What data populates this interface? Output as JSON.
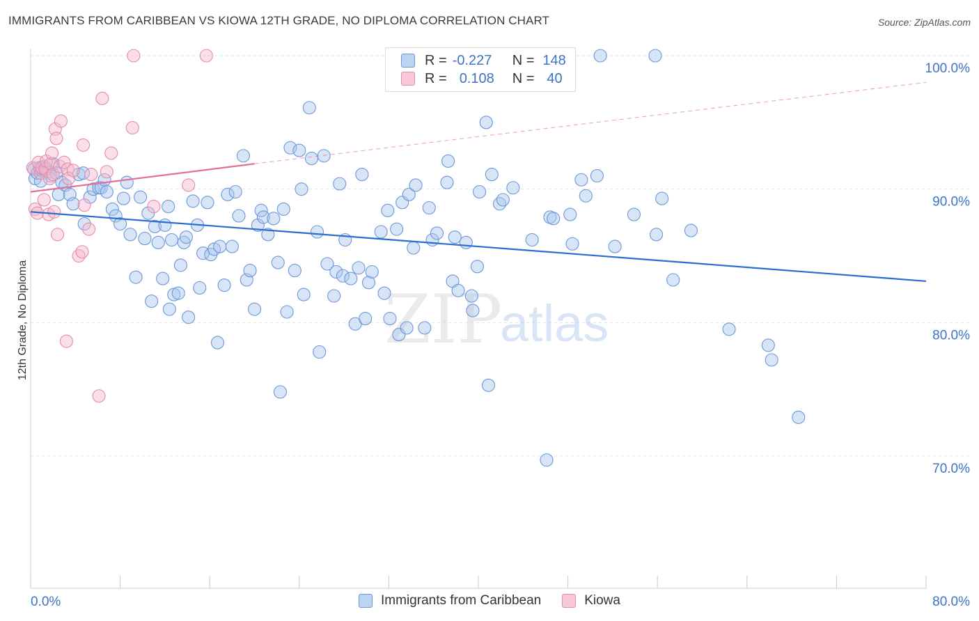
{
  "title": "IMMIGRANTS FROM CARIBBEAN VS KIOWA 12TH GRADE, NO DIPLOMA CORRELATION CHART",
  "source": "Source: ZipAtlas.com",
  "watermark": {
    "zip": "ZIP",
    "atlas": "atlas"
  },
  "colors": {
    "blue": "#3b73c8",
    "blue_fill": "#a9c6ee",
    "blue_line": "#2a6cd0",
    "pink": "#e06896",
    "pink_fill": "#f4b9cc",
    "pink_line": "#e27099",
    "grid": "#e3e3e3",
    "axis_text": "#3b73c8"
  },
  "legend": {
    "rows": [
      {
        "r_label": "R =",
        "r_value": "-0.227",
        "n_label": "N =",
        "n_value": "148",
        "color": "blue"
      },
      {
        "r_label": "R =",
        "r_value": "0.108",
        "n_label": "N =",
        "n_value": "40",
        "color": "pink"
      }
    ],
    "items": [
      {
        "label": "Immigrants from Caribbean",
        "color": "blue"
      },
      {
        "label": "Kiowa",
        "color": "pink"
      }
    ]
  },
  "chart_data": {
    "type": "scatter",
    "title": "IMMIGRANTS FROM CARIBBEAN VS KIOWA 12TH GRADE, NO DIPLOMA CORRELATION CHART",
    "xlabel": "",
    "ylabel": "12th Grade, No Diploma",
    "xlim": [
      0,
      80
    ],
    "ylim": [
      60,
      101
    ],
    "x_tick_labels": [
      "0.0%",
      "80.0%"
    ],
    "y_tick_values": [
      70,
      80,
      90,
      100
    ],
    "y_tick_labels": [
      "70.0%",
      "80.0%",
      "90.0%",
      "100.0%"
    ],
    "grid": true,
    "legend_position": "top-center",
    "series": [
      {
        "name": "Immigrants from Caribbean",
        "color": "#3b73c8",
        "r": -0.227,
        "n": 148,
        "trend": {
          "x": [
            0,
            80
          ],
          "y": [
            88.3,
            83.1
          ]
        },
        "points": [
          [
            0.3,
            91.5
          ],
          [
            0.4,
            90.8
          ],
          [
            0.6,
            91.2
          ],
          [
            0.8,
            91.6
          ],
          [
            1.0,
            91.4
          ],
          [
            1.2,
            91.7
          ],
          [
            1.4,
            91.5
          ],
          [
            1.6,
            91.3
          ],
          [
            1.8,
            91.0
          ],
          [
            2.0,
            91.9
          ],
          [
            2.3,
            91.2
          ],
          [
            2.5,
            89.6
          ],
          [
            2.8,
            90.5
          ],
          [
            3.1,
            90.3
          ],
          [
            3.5,
            89.6
          ],
          [
            3.8,
            88.9
          ],
          [
            4.3,
            91.1
          ],
          [
            4.7,
            91.2
          ],
          [
            4.8,
            87.4
          ],
          [
            5.3,
            89.4
          ],
          [
            5.6,
            90.0
          ],
          [
            6.1,
            90.1
          ],
          [
            6.3,
            90.1
          ],
          [
            6.6,
            90.7
          ],
          [
            6.8,
            89.8
          ],
          [
            7.3,
            88.5
          ],
          [
            7.6,
            88.0
          ],
          [
            8.0,
            87.4
          ],
          [
            8.3,
            89.3
          ],
          [
            8.6,
            90.5
          ],
          [
            8.9,
            86.6
          ],
          [
            9.4,
            83.4
          ],
          [
            9.8,
            89.4
          ],
          [
            10.2,
            86.3
          ],
          [
            10.5,
            88.2
          ],
          [
            10.8,
            81.6
          ],
          [
            11.1,
            87.2
          ],
          [
            11.4,
            86.0
          ],
          [
            11.8,
            83.3
          ],
          [
            12.0,
            87.3
          ],
          [
            12.3,
            88.7
          ],
          [
            12.4,
            81.0
          ],
          [
            12.6,
            86.2
          ],
          [
            12.8,
            82.1
          ],
          [
            13.2,
            82.2
          ],
          [
            13.4,
            84.3
          ],
          [
            13.7,
            86.0
          ],
          [
            13.9,
            86.4
          ],
          [
            14.1,
            80.4
          ],
          [
            14.5,
            89.1
          ],
          [
            14.9,
            87.3
          ],
          [
            15.1,
            82.6
          ],
          [
            15.4,
            85.2
          ],
          [
            15.8,
            89.0
          ],
          [
            16.1,
            85.1
          ],
          [
            16.4,
            85.5
          ],
          [
            16.7,
            78.5
          ],
          [
            16.9,
            85.7
          ],
          [
            17.3,
            82.8
          ],
          [
            17.6,
            89.6
          ],
          [
            18.0,
            85.7
          ],
          [
            18.3,
            89.8
          ],
          [
            18.6,
            88.0
          ],
          [
            19.0,
            92.5
          ],
          [
            19.3,
            83.2
          ],
          [
            19.6,
            83.9
          ],
          [
            20.0,
            81.0
          ],
          [
            20.3,
            87.3
          ],
          [
            20.6,
            88.4
          ],
          [
            20.8,
            87.9
          ],
          [
            21.2,
            86.6
          ],
          [
            21.7,
            87.8
          ],
          [
            22.1,
            84.5
          ],
          [
            22.3,
            74.8
          ],
          [
            22.6,
            88.5
          ],
          [
            22.9,
            80.8
          ],
          [
            23.2,
            93.1
          ],
          [
            23.6,
            83.9
          ],
          [
            24.0,
            92.9
          ],
          [
            24.2,
            90.0
          ],
          [
            24.4,
            82.1
          ],
          [
            24.9,
            96.1
          ],
          [
            25.1,
            92.3
          ],
          [
            25.6,
            86.8
          ],
          [
            25.8,
            77.8
          ],
          [
            26.2,
            92.5
          ],
          [
            26.5,
            84.4
          ],
          [
            27.1,
            82.0
          ],
          [
            27.3,
            83.8
          ],
          [
            27.6,
            90.4
          ],
          [
            27.9,
            83.5
          ],
          [
            28.1,
            86.2
          ],
          [
            28.6,
            83.3
          ],
          [
            29.0,
            79.9
          ],
          [
            29.3,
            84.1
          ],
          [
            29.6,
            91.1
          ],
          [
            29.9,
            80.3
          ],
          [
            30.2,
            83.0
          ],
          [
            30.5,
            83.8
          ],
          [
            31.3,
            86.8
          ],
          [
            31.6,
            82.2
          ],
          [
            31.9,
            88.4
          ],
          [
            32.1,
            80.3
          ],
          [
            32.7,
            87.0
          ],
          [
            32.9,
            79.1
          ],
          [
            33.2,
            89.0
          ],
          [
            33.6,
            79.6
          ],
          [
            33.8,
            89.6
          ],
          [
            34.2,
            85.6
          ],
          [
            34.4,
            90.3
          ],
          [
            35.2,
            79.6
          ],
          [
            35.6,
            88.6
          ],
          [
            35.9,
            86.2
          ],
          [
            36.3,
            86.7
          ],
          [
            37.2,
            90.5
          ],
          [
            37.3,
            92.1
          ],
          [
            37.7,
            83.1
          ],
          [
            37.9,
            86.4
          ],
          [
            38.2,
            82.4
          ],
          [
            38.9,
            86.0
          ],
          [
            39.4,
            82.0
          ],
          [
            39.5,
            80.9
          ],
          [
            39.9,
            84.2
          ],
          [
            40.1,
            89.8
          ],
          [
            40.7,
            95.0
          ],
          [
            40.9,
            75.3
          ],
          [
            41.2,
            91.1
          ],
          [
            41.9,
            88.9
          ],
          [
            42.2,
            89.2
          ],
          [
            43.1,
            90.1
          ],
          [
            44.8,
            86.2
          ],
          [
            46.1,
            69.7
          ],
          [
            46.4,
            87.9
          ],
          [
            46.7,
            87.8
          ],
          [
            48.2,
            88.1
          ],
          [
            48.4,
            85.9
          ],
          [
            49.2,
            90.7
          ],
          [
            49.6,
            89.5
          ],
          [
            50.6,
            91.0
          ],
          [
            50.9,
            100.0
          ],
          [
            52.2,
            85.7
          ],
          [
            53.9,
            88.1
          ],
          [
            55.8,
            100.0
          ],
          [
            55.9,
            86.6
          ],
          [
            56.4,
            89.3
          ],
          [
            57.4,
            83.2
          ],
          [
            59.0,
            86.9
          ],
          [
            62.4,
            79.5
          ],
          [
            65.9,
            78.3
          ],
          [
            66.2,
            77.2
          ],
          [
            68.6,
            72.9
          ],
          [
            0.9,
            90.6
          ]
        ]
      },
      {
        "name": "Kiowa",
        "color": "#e06896",
        "r": 0.108,
        "n": 40,
        "trend": {
          "x": [
            0,
            20
          ],
          "y": [
            89.8,
            91.9
          ]
        },
        "trend_extension": {
          "x": [
            20,
            80
          ],
          "y": [
            91.9,
            98.0
          ]
        },
        "points": [
          [
            0.2,
            91.6
          ],
          [
            0.4,
            88.5
          ],
          [
            0.6,
            88.2
          ],
          [
            0.7,
            92.0
          ],
          [
            0.9,
            91.2
          ],
          [
            1.0,
            91.6
          ],
          [
            1.2,
            89.2
          ],
          [
            1.3,
            91.5
          ],
          [
            1.4,
            92.1
          ],
          [
            1.6,
            88.1
          ],
          [
            1.7,
            90.8
          ],
          [
            1.8,
            91.9
          ],
          [
            1.9,
            92.7
          ],
          [
            2.0,
            91.1
          ],
          [
            2.1,
            88.3
          ],
          [
            2.2,
            94.5
          ],
          [
            2.3,
            93.8
          ],
          [
            2.4,
            86.6
          ],
          [
            2.6,
            91.7
          ],
          [
            2.7,
            95.1
          ],
          [
            3.0,
            92.0
          ],
          [
            3.2,
            78.6
          ],
          [
            3.3,
            91.5
          ],
          [
            3.4,
            90.8
          ],
          [
            3.8,
            91.4
          ],
          [
            4.3,
            85.0
          ],
          [
            4.6,
            85.3
          ],
          [
            4.7,
            93.3
          ],
          [
            4.8,
            88.8
          ],
          [
            5.2,
            87.0
          ],
          [
            5.4,
            91.1
          ],
          [
            6.1,
            74.5
          ],
          [
            6.4,
            96.8
          ],
          [
            6.8,
            91.3
          ],
          [
            7.2,
            92.7
          ],
          [
            9.1,
            94.6
          ],
          [
            9.2,
            100.0
          ],
          [
            11.0,
            88.7
          ],
          [
            14.1,
            90.3
          ],
          [
            15.7,
            100.0
          ]
        ]
      }
    ]
  }
}
